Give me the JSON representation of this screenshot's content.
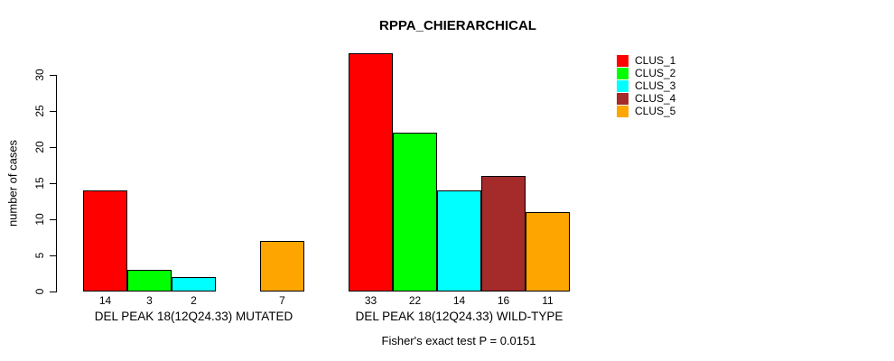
{
  "title": "RPPA_CHIERARCHICAL",
  "y_axis": {
    "label": "number of cases",
    "ticks": [
      0,
      5,
      10,
      15,
      20,
      25,
      30
    ]
  },
  "legend": {
    "items": [
      {
        "label": "CLUS_1",
        "color": "#FF0000"
      },
      {
        "label": "CLUS_2",
        "color": "#00FF00"
      },
      {
        "label": "CLUS_3",
        "color": "#00FFFF"
      },
      {
        "label": "CLUS_4",
        "color": "#A52A2A"
      },
      {
        "label": "CLUS_5",
        "color": "#FFA500"
      }
    ]
  },
  "footer": "Fisher's exact test P = 0.0151",
  "chart_data": {
    "type": "bar",
    "title": "RPPA_CHIERARCHICAL",
    "ylabel": "number of cases",
    "ylim": [
      0,
      33
    ],
    "yticks": [
      0,
      5,
      10,
      15,
      20,
      25,
      30
    ],
    "grid": false,
    "legend_position": "right",
    "categories": [
      "DEL PEAK 18(12Q24.33) MUTATED",
      "DEL PEAK 18(12Q24.33) WILD-TYPE"
    ],
    "series": [
      {
        "name": "CLUS_1",
        "color": "#FF0000",
        "values": [
          14,
          33
        ]
      },
      {
        "name": "CLUS_2",
        "color": "#00FF00",
        "values": [
          3,
          22
        ]
      },
      {
        "name": "CLUS_3",
        "color": "#00FFFF",
        "values": [
          2,
          14
        ]
      },
      {
        "name": "CLUS_4",
        "color": "#A52A2A",
        "values": [
          0,
          16
        ]
      },
      {
        "name": "CLUS_5",
        "color": "#FFA500",
        "values": [
          7,
          11
        ]
      }
    ],
    "bar_value_labels": [
      [
        "14",
        "3",
        "2",
        "",
        "7"
      ],
      [
        "33",
        "22",
        "14",
        "16",
        "11"
      ]
    ],
    "annotation": "Fisher's exact test P = 0.0151"
  }
}
